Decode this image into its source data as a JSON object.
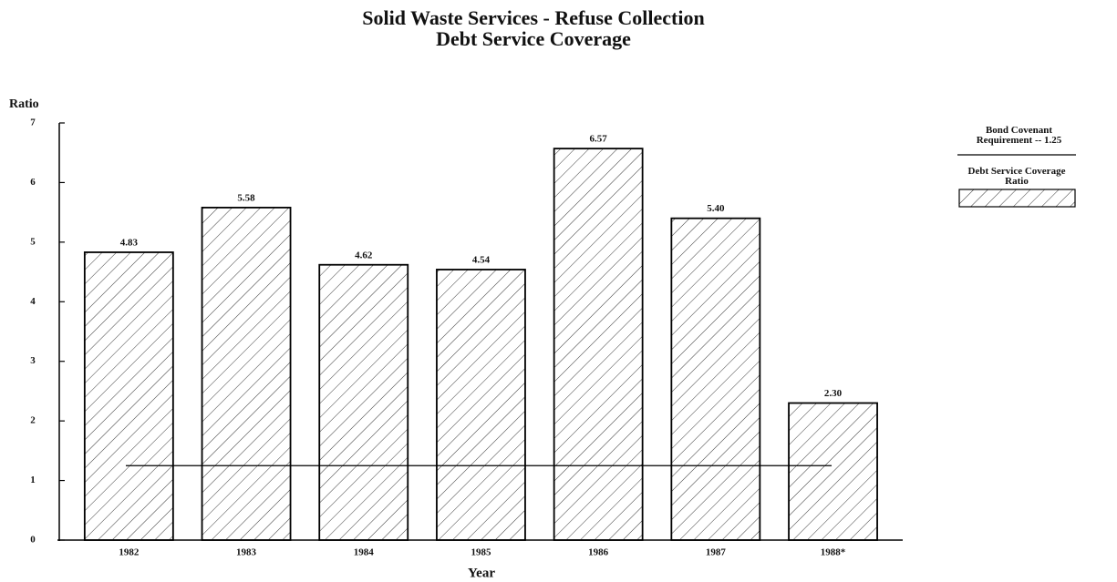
{
  "chart_data": {
    "type": "bar",
    "title": [
      "Solid Waste Services - Refuse Collection",
      "Debt Service Coverage"
    ],
    "y_label": "Ratio",
    "x_label": "Year",
    "categories": [
      "1982",
      "1983",
      "1984",
      "1985",
      "1986",
      "1987",
      "1988*"
    ],
    "series": [
      {
        "name": "Debt Service Coverage Ratio",
        "color": "#000000",
        "values": [
          4.83,
          5.58,
          4.62,
          4.54,
          6.57,
          5.4,
          2.3
        ],
        "value_labels": [
          "4.83",
          "5.58",
          "4.62",
          "4.54",
          "6.57",
          "5.40",
          "2.30"
        ]
      }
    ],
    "reference_line": {
      "name": "Bond Covenant Requirement -- 1.25",
      "value": 1.25
    },
    "ylim": [
      0,
      7
    ],
    "yticks": [
      0,
      1,
      2,
      3,
      4,
      5,
      6,
      7
    ],
    "hatch": true
  }
}
